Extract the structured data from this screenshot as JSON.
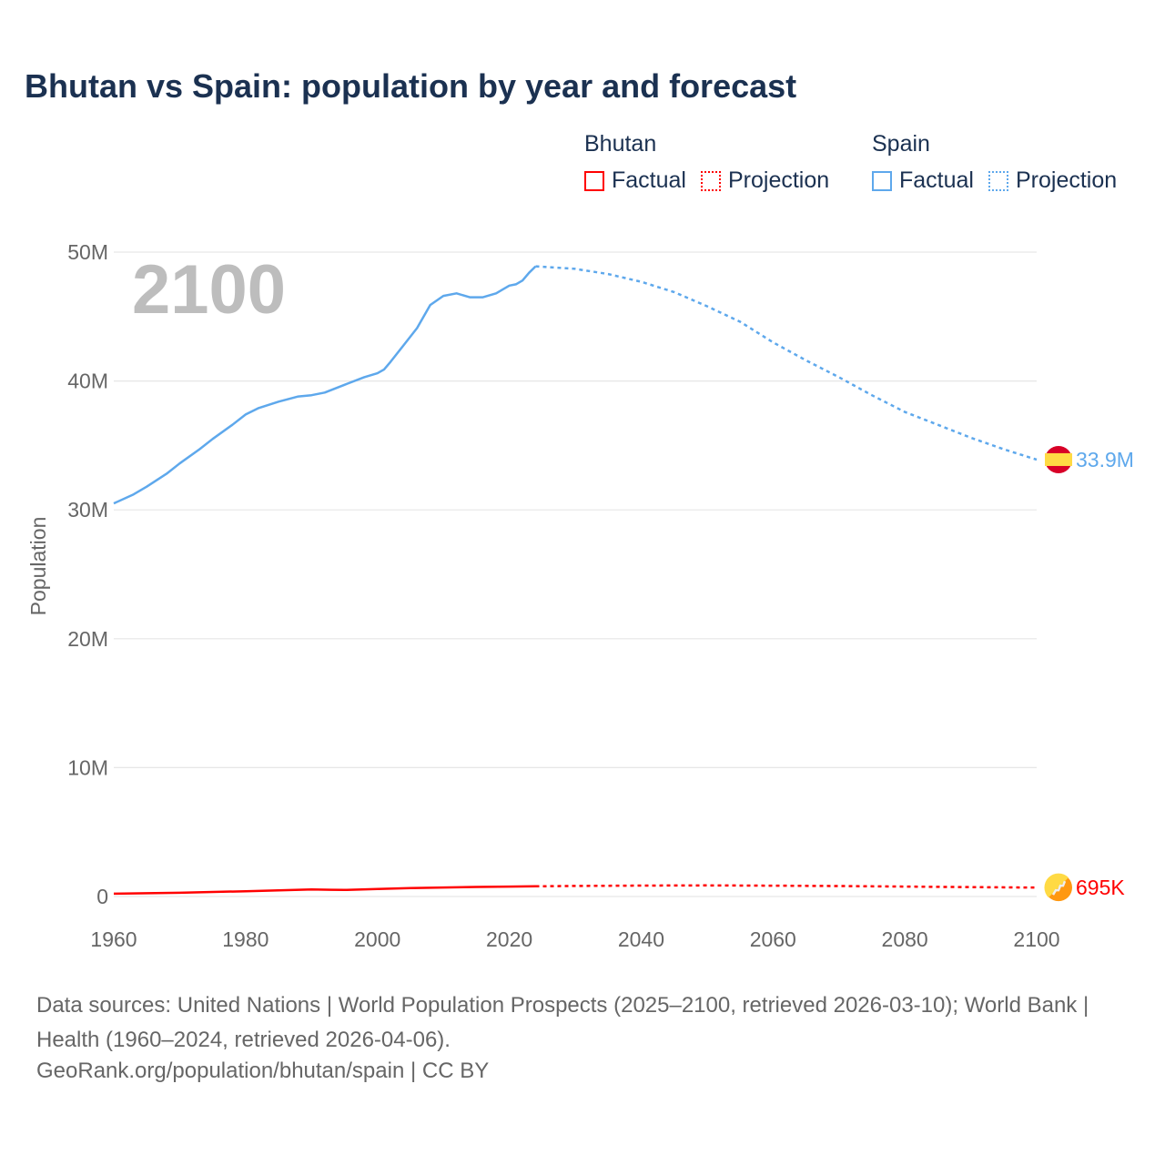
{
  "title": "Bhutan vs Spain: population by year and forecast",
  "legend": {
    "groups": [
      {
        "name": "Bhutan",
        "color": "#ff0000",
        "factual": "Factual",
        "projection": "Projection"
      },
      {
        "name": "Spain",
        "color": "#5ea8ec",
        "factual": "Factual",
        "projection": "Projection"
      }
    ]
  },
  "year_label": "2100",
  "footer": {
    "sources": "Data sources: United Nations | World Population Prospects (2025–2100, retrieved 2026-03-10); World Bank | Health (1960–2024, retrieved 2026-04-06).",
    "credit": "GeoRank.org/population/bhutan/spain | CC BY"
  },
  "chart_data": {
    "type": "line",
    "title": "Bhutan vs Spain: population by year and forecast",
    "xlabel": "",
    "ylabel": "Population",
    "xlim": [
      1960,
      2100
    ],
    "ylim": [
      0,
      50000000
    ],
    "x_ticks": [
      1960,
      1980,
      2000,
      2020,
      2040,
      2060,
      2080,
      2100
    ],
    "y_ticks": [
      {
        "v": 0,
        "label": "0"
      },
      {
        "v": 10000000,
        "label": "10M"
      },
      {
        "v": 20000000,
        "label": "20M"
      },
      {
        "v": 30000000,
        "label": "30M"
      },
      {
        "v": 40000000,
        "label": "40M"
      },
      {
        "v": 50000000,
        "label": "50M"
      }
    ],
    "grid": true,
    "legend_position": "top-right",
    "series": [
      {
        "name": "Spain",
        "color": "#5ea8ec",
        "end_label": "33.9M",
        "factual": [
          [
            1960,
            30.5
          ],
          [
            1963,
            31.2
          ],
          [
            1965,
            31.8
          ],
          [
            1968,
            32.8
          ],
          [
            1970,
            33.6
          ],
          [
            1973,
            34.7
          ],
          [
            1975,
            35.5
          ],
          [
            1978,
            36.6
          ],
          [
            1980,
            37.4
          ],
          [
            1982,
            37.9
          ],
          [
            1985,
            38.4
          ],
          [
            1988,
            38.8
          ],
          [
            1990,
            38.9
          ],
          [
            1992,
            39.1
          ],
          [
            1995,
            39.7
          ],
          [
            1998,
            40.3
          ],
          [
            2000,
            40.6
          ],
          [
            2001,
            40.9
          ],
          [
            2002,
            41.5
          ],
          [
            2004,
            42.8
          ],
          [
            2006,
            44.1
          ],
          [
            2008,
            45.9
          ],
          [
            2010,
            46.6
          ],
          [
            2012,
            46.8
          ],
          [
            2014,
            46.5
          ],
          [
            2016,
            46.5
          ],
          [
            2018,
            46.8
          ],
          [
            2019,
            47.1
          ],
          [
            2020,
            47.4
          ],
          [
            2021,
            47.5
          ],
          [
            2022,
            47.8
          ],
          [
            2023,
            48.4
          ],
          [
            2024,
            48.9
          ]
        ],
        "projection": [
          [
            2024,
            48.9
          ],
          [
            2030,
            48.7
          ],
          [
            2035,
            48.3
          ],
          [
            2040,
            47.7
          ],
          [
            2045,
            46.9
          ],
          [
            2050,
            45.8
          ],
          [
            2055,
            44.6
          ],
          [
            2060,
            43.0
          ],
          [
            2065,
            41.6
          ],
          [
            2070,
            40.3
          ],
          [
            2075,
            38.9
          ],
          [
            2080,
            37.6
          ],
          [
            2085,
            36.6
          ],
          [
            2090,
            35.6
          ],
          [
            2095,
            34.7
          ],
          [
            2100,
            33.9
          ]
        ]
      },
      {
        "name": "Bhutan",
        "color": "#ff0000",
        "end_label": "695K",
        "factual": [
          [
            1960,
            0.22
          ],
          [
            1970,
            0.29
          ],
          [
            1980,
            0.41
          ],
          [
            1990,
            0.55
          ],
          [
            1993,
            0.52
          ],
          [
            1995,
            0.51
          ],
          [
            2000,
            0.58
          ],
          [
            2005,
            0.65
          ],
          [
            2010,
            0.7
          ],
          [
            2015,
            0.74
          ],
          [
            2020,
            0.77
          ],
          [
            2024,
            0.79
          ]
        ],
        "projection": [
          [
            2024,
            0.79
          ],
          [
            2030,
            0.82
          ],
          [
            2040,
            0.85
          ],
          [
            2050,
            0.86
          ],
          [
            2060,
            0.84
          ],
          [
            2070,
            0.81
          ],
          [
            2080,
            0.77
          ],
          [
            2090,
            0.73
          ],
          [
            2100,
            0.695
          ]
        ]
      }
    ]
  }
}
